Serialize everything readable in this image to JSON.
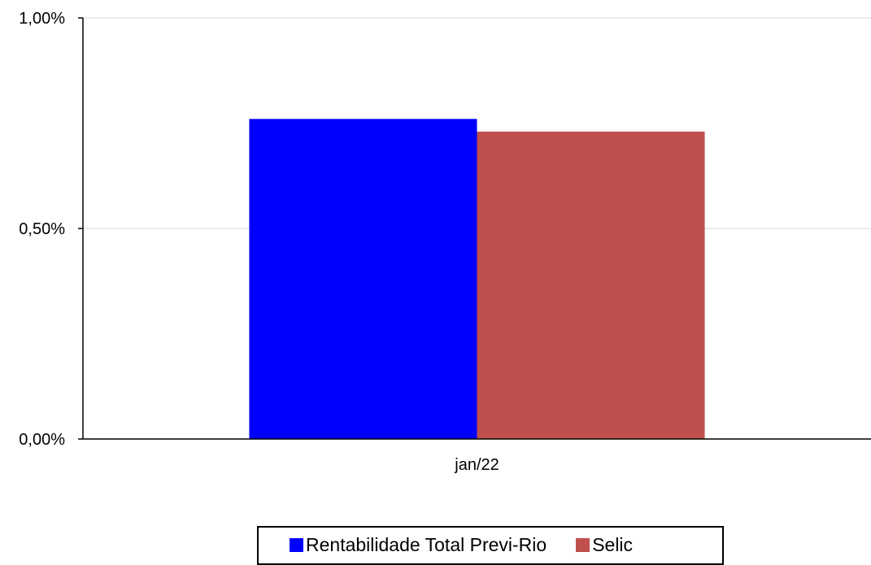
{
  "chart_data": {
    "type": "bar",
    "categories": [
      "jan/22"
    ],
    "series": [
      {
        "name": "Rentabilidade Total Previ-Rio",
        "values": [
          0.76
        ],
        "color": "#0000ff"
      },
      {
        "name": "Selic",
        "values": [
          0.73
        ],
        "color": "#c0504d"
      }
    ],
    "ylim": [
      0,
      1
    ],
    "yticks": [
      {
        "value": 0,
        "label": "0,00%"
      },
      {
        "value": 0.5,
        "label": "0,50%"
      },
      {
        "value": 1,
        "label": "1,00%"
      }
    ],
    "grid": true,
    "legend_position": "bottom",
    "title": "",
    "xlabel": "",
    "ylabel": ""
  }
}
